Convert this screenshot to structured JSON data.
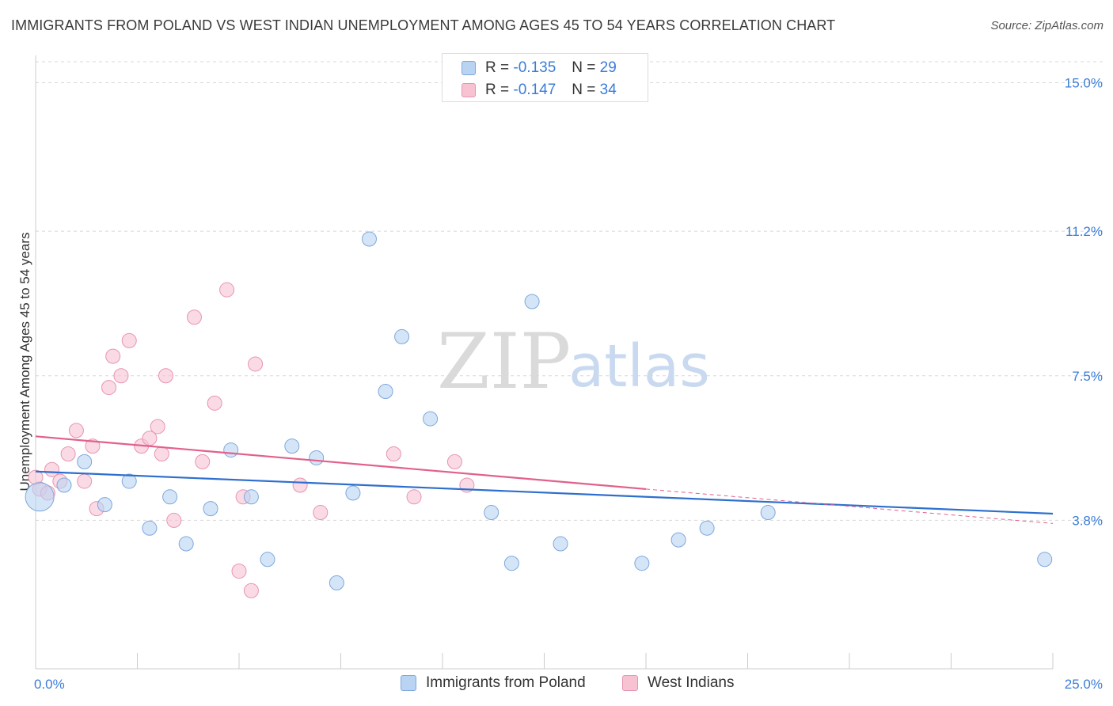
{
  "title": "IMMIGRANTS FROM POLAND VS WEST INDIAN UNEMPLOYMENT AMONG AGES 45 TO 54 YEARS CORRELATION CHART",
  "source": "Source: ZipAtlas.com",
  "watermark": {
    "zip": "ZIP",
    "atlas": "atlas"
  },
  "legend": {
    "poland": {
      "r_label": "R = ",
      "r_value": "-0.135",
      "n_label": "N = ",
      "n_value": "29"
    },
    "west_indians": {
      "r_label": "R = ",
      "r_value": "-0.147",
      "n_label": "N = ",
      "n_value": "34"
    }
  },
  "bottom_legend": {
    "poland": "Immigrants from Poland",
    "west_indians": "West Indians"
  },
  "colors": {
    "poland_fill": "#b9d3f3",
    "poland_stroke": "#7ea7dc",
    "poland_line": "#2e6fce",
    "wi_fill": "#f7c3d3",
    "wi_stroke": "#e894b0",
    "wi_line": "#e2608c",
    "grid": "#d8d8d8",
    "tick_text": "#3b7dd8"
  },
  "chart_data": {
    "type": "scatter",
    "xlabel": "",
    "ylabel": "Unemployment Among Ages 45 to 54 years",
    "xlim": [
      0,
      25
    ],
    "ylim": [
      0,
      15.7
    ],
    "x_tick_labels": [
      {
        "value": 0,
        "label": "0.0%"
      },
      {
        "value": 25,
        "label": "25.0%"
      }
    ],
    "y_tick_labels": [
      {
        "value": 3.8,
        "label": "3.8%"
      },
      {
        "value": 7.5,
        "label": "7.5%"
      },
      {
        "value": 11.2,
        "label": "11.2%"
      },
      {
        "value": 15.0,
        "label": "15.0%"
      }
    ],
    "grid": "horizontal dashed",
    "series": [
      {
        "name": "Immigrants from Poland",
        "points": [
          [
            0.1,
            4.4,
            3
          ],
          [
            0.7,
            4.7,
            1
          ],
          [
            1.2,
            5.3,
            1
          ],
          [
            1.7,
            4.2,
            1
          ],
          [
            2.3,
            4.8,
            1
          ],
          [
            2.8,
            3.6,
            1
          ],
          [
            3.3,
            4.4,
            1
          ],
          [
            3.7,
            3.2,
            1
          ],
          [
            4.3,
            4.1,
            1
          ],
          [
            4.8,
            5.6,
            1
          ],
          [
            5.3,
            4.4,
            1
          ],
          [
            5.7,
            2.8,
            1
          ],
          [
            6.3,
            5.7,
            1
          ],
          [
            6.9,
            5.4,
            1
          ],
          [
            7.4,
            2.2,
            1
          ],
          [
            7.8,
            4.5,
            1
          ],
          [
            8.2,
            11.0,
            1
          ],
          [
            8.6,
            7.1,
            1
          ],
          [
            9.0,
            8.5,
            1
          ],
          [
            9.7,
            6.4,
            1
          ],
          [
            11.2,
            4.0,
            1
          ],
          [
            11.7,
            2.7,
            1
          ],
          [
            12.2,
            9.4,
            1
          ],
          [
            12.9,
            3.2,
            1
          ],
          [
            14.9,
            2.7,
            1
          ],
          [
            15.8,
            3.3,
            1
          ],
          [
            16.5,
            3.6,
            1
          ],
          [
            18.0,
            4.0,
            1
          ],
          [
            24.8,
            2.8,
            1
          ]
        ],
        "trend": {
          "x0": 0,
          "y0": 5.05,
          "x1": 25,
          "y1": 3.97
        }
      },
      {
        "name": "West Indians",
        "points": [
          [
            0.1,
            4.6,
            1
          ],
          [
            0.4,
            5.1,
            1
          ],
          [
            0.6,
            4.8,
            1
          ],
          [
            0.8,
            5.5,
            1
          ],
          [
            1.0,
            6.1,
            1
          ],
          [
            1.2,
            4.8,
            1
          ],
          [
            1.4,
            5.7,
            1
          ],
          [
            1.5,
            4.1,
            1
          ],
          [
            1.8,
            7.2,
            1
          ],
          [
            1.9,
            8.0,
            1
          ],
          [
            2.1,
            7.5,
            1
          ],
          [
            2.3,
            8.4,
            1
          ],
          [
            2.6,
            5.7,
            1
          ],
          [
            2.8,
            5.9,
            1
          ],
          [
            3.0,
            6.2,
            1
          ],
          [
            3.1,
            5.5,
            1
          ],
          [
            3.2,
            7.5,
            1
          ],
          [
            3.4,
            3.8,
            1
          ],
          [
            3.9,
            9.0,
            1
          ],
          [
            4.1,
            5.3,
            1
          ],
          [
            4.4,
            6.8,
            1
          ],
          [
            4.7,
            9.7,
            1
          ],
          [
            5.0,
            2.5,
            1
          ],
          [
            5.1,
            4.4,
            1
          ],
          [
            5.3,
            2.0,
            1
          ],
          [
            5.4,
            7.8,
            1
          ],
          [
            6.5,
            4.7,
            1
          ],
          [
            7.0,
            4.0,
            1
          ],
          [
            8.8,
            5.5,
            1
          ],
          [
            9.3,
            4.4,
            1
          ],
          [
            10.3,
            5.3,
            1
          ],
          [
            10.6,
            4.7,
            1
          ],
          [
            0.0,
            4.9,
            1
          ],
          [
            0.3,
            4.5,
            1
          ]
        ],
        "trend": {
          "x0": 0,
          "y0": 5.95,
          "x1": 15,
          "y1": 4.6
        },
        "trend_dashed_extension": {
          "x0": 15,
          "y0": 4.6,
          "x1": 25,
          "y1": 3.72
        }
      }
    ]
  }
}
